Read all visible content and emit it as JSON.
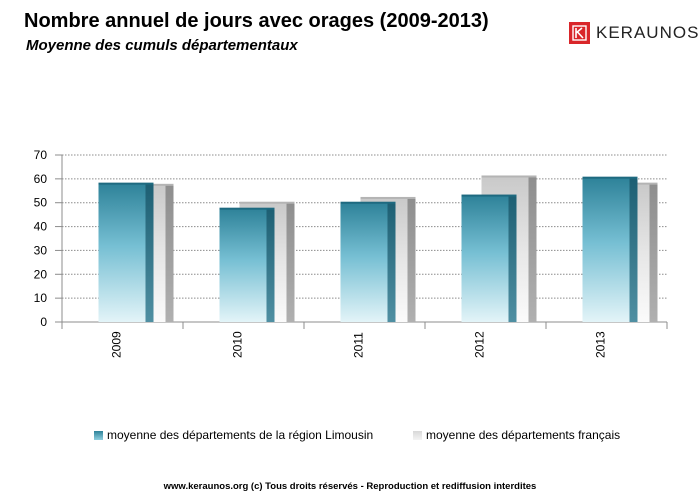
{
  "header": {
    "title": "Nombre annuel de jours avec orages (2009-2013)",
    "subtitle": "Moyenne des cumuls départementaux"
  },
  "logo": {
    "text": "KERAUNOS",
    "icon": "keraunos-k-logo-icon",
    "color": "#d9262a"
  },
  "chart_data": {
    "type": "bar",
    "categories": [
      "2009",
      "2010",
      "2011",
      "2012",
      "2013"
    ],
    "series": [
      {
        "name": "moyenne des départements de la région Limousin",
        "values": [
          58,
          47.5,
          50,
          53,
          60.5
        ],
        "color": "#2f8aa0"
      },
      {
        "name": "moyenne des départements français",
        "values": [
          57.5,
          50,
          52,
          61,
          58
        ],
        "color": "#c8c8c8"
      }
    ],
    "ylim": [
      0,
      70
    ],
    "yticks": [
      0,
      10,
      20,
      30,
      40,
      50,
      60,
      70
    ],
    "grid": true,
    "legend_position": "bottom"
  },
  "footer": {
    "text": "www.keraunos.org  (c) Tous droits réservés - Reproduction et rediffusion interdites"
  }
}
